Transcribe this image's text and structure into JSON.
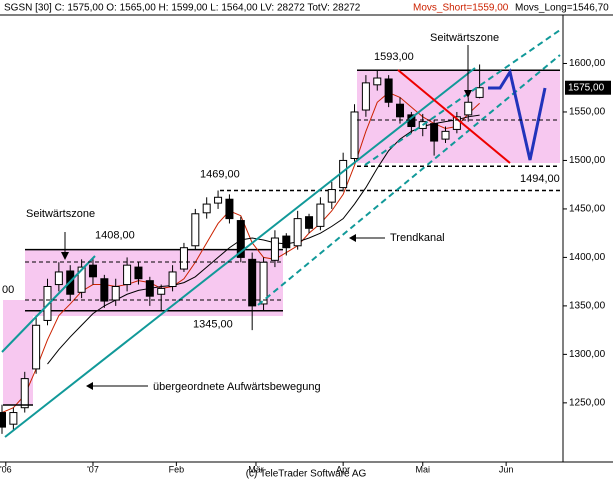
{
  "chart_data": {
    "type": "candlestick",
    "header": "SGSN [30] C: 1575,00 O: 1565,00 H: 1599,00 L: 1564,00 LV: 28272 TotV: 28272",
    "footer": "(c) TeleTrader Software AG",
    "x": [
      0,
      3,
      6,
      9,
      12,
      15,
      18,
      21,
      24,
      27,
      30,
      33,
      36,
      39,
      42,
      45,
      48,
      51,
      54,
      57,
      60,
      63,
      66,
      69,
      72,
      75,
      78,
      81,
      84,
      87,
      90,
      93,
      96,
      99,
      102,
      105,
      108,
      111,
      114,
      117,
      120,
      123,
      126
    ],
    "open": [
      1240,
      1228,
      1245,
      1285,
      1335,
      1372,
      1386,
      1364,
      1392,
      1378,
      1356,
      1372,
      1390,
      1376,
      1362,
      1370,
      1388,
      1412,
      1446,
      1456,
      1460,
      1438,
      1398,
      1352,
      1397,
      1422,
      1412,
      1442,
      1432,
      1457,
      1472,
      1502,
      1552,
      1578,
      1584,
      1558,
      1547,
      1533,
      1538,
      1522,
      1532,
      1547,
      1565
    ],
    "high": [
      1248,
      1245,
      1282,
      1340,
      1378,
      1395,
      1392,
      1398,
      1400,
      1382,
      1378,
      1400,
      1395,
      1380,
      1372,
      1392,
      1415,
      1450,
      1462,
      1469,
      1465,
      1442,
      1405,
      1400,
      1428,
      1425,
      1448,
      1445,
      1462,
      1478,
      1508,
      1558,
      1588,
      1593,
      1588,
      1565,
      1550,
      1548,
      1542,
      1535,
      1550,
      1565,
      1599
    ],
    "low": [
      1218,
      1222,
      1240,
      1280,
      1330,
      1365,
      1355,
      1358,
      1372,
      1348,
      1350,
      1365,
      1372,
      1350,
      1345,
      1365,
      1385,
      1408,
      1440,
      1450,
      1435,
      1395,
      1325,
      1345,
      1390,
      1402,
      1408,
      1425,
      1428,
      1450,
      1468,
      1498,
      1545,
      1572,
      1555,
      1538,
      1528,
      1525,
      1505,
      1518,
      1528,
      1540,
      1564
    ],
    "close": [
      1225,
      1240,
      1275,
      1330,
      1370,
      1385,
      1362,
      1390,
      1380,
      1355,
      1370,
      1392,
      1378,
      1360,
      1368,
      1385,
      1410,
      1445,
      1455,
      1462,
      1440,
      1400,
      1350,
      1395,
      1420,
      1410,
      1440,
      1430,
      1455,
      1470,
      1500,
      1550,
      1580,
      1585,
      1560,
      1545,
      1535,
      1540,
      1520,
      1530,
      1545,
      1560,
      1575
    ],
    "series": [
      {
        "name": "Movs_Short=1559,00",
        "color": "#cc2200",
        "values": [
          1240,
          1245,
          1258,
          1285,
          1315,
          1340,
          1352,
          1365,
          1372,
          1372,
          1370,
          1372,
          1376,
          1374,
          1368,
          1370,
          1378,
          1395,
          1415,
          1435,
          1448,
          1443,
          1415,
          1400,
          1398,
          1405,
          1412,
          1425,
          1435,
          1448,
          1465,
          1495,
          1530,
          1560,
          1570,
          1565,
          1555,
          1545,
          1538,
          1533,
          1535,
          1548,
          1559
        ]
      },
      {
        "name": "Movs_Long=1546,70",
        "color": "#000000",
        "values": [
          null,
          null,
          null,
          null,
          1290,
          1305,
          1318,
          1330,
          1342,
          1350,
          1356,
          1362,
          1366,
          1368,
          1370,
          1371,
          1374,
          1380,
          1390,
          1400,
          1410,
          1418,
          1420,
          1418,
          1415,
          1414,
          1416,
          1420,
          1425,
          1432,
          1440,
          1455,
          1472,
          1492,
          1510,
          1522,
          1530,
          1535,
          1538,
          1540,
          1542,
          1545,
          1546.7
        ]
      }
    ],
    "xlim": [
      0,
      148
    ],
    "xticks": [
      {
        "value": 1,
        "label": "'06"
      },
      {
        "value": 24,
        "label": "'07"
      },
      {
        "value": 46,
        "label": "Feb"
      },
      {
        "value": 67,
        "label": "Mär"
      },
      {
        "value": 90,
        "label": "Apr"
      },
      {
        "value": 111,
        "label": "Mai"
      },
      {
        "value": 133,
        "label": "Jun"
      }
    ],
    "ylim": [
      1189,
      1650
    ],
    "yticks": [
      {
        "value": 1250,
        "label": "1250,00"
      },
      {
        "value": 1300,
        "label": "1300,00"
      },
      {
        "value": 1350,
        "label": "1350,00"
      },
      {
        "value": 1400,
        "label": "1400,00"
      },
      {
        "value": 1450,
        "label": "1450,00"
      },
      {
        "value": 1500,
        "label": "1500,00"
      },
      {
        "value": 1550,
        "label": "1550,00"
      },
      {
        "value": 1600,
        "label": "1600,00"
      }
    ],
    "last_price": {
      "value": 1575,
      "label": "1575,00"
    },
    "levels": [
      {
        "value": 1408,
        "label": "1408,00"
      },
      {
        "value": 1345,
        "label": "1345,00"
      },
      {
        "value": 1469,
        "label": "1469,00"
      },
      {
        "value": 1593,
        "label": "1593,00"
      },
      {
        "value": 1494,
        "label": "1494,00"
      }
    ],
    "annotations": [
      "Seitwärtszone",
      "Seitwärtszone",
      "Trendkanal",
      "übergeordnete Aufwärtsbewegung",
      "00"
    ]
  }
}
